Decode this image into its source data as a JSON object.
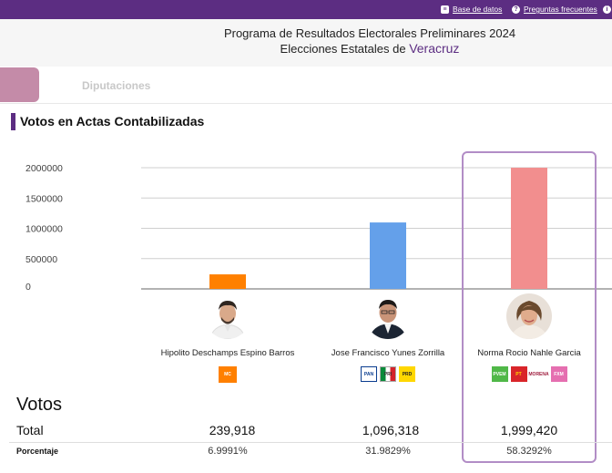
{
  "topbar": {
    "links": [
      {
        "label": "Base de datos",
        "icon": "database-icon"
      },
      {
        "label": "Preguntas frecuentes",
        "icon": "question-circle-icon"
      }
    ]
  },
  "header": {
    "line1": "Programa de Resultados Electorales Preliminares 2024",
    "line2_prefix": "Elecciones Estatales de ",
    "state": "Veracruz"
  },
  "tabs": {
    "diputaciones": "Diputaciones"
  },
  "section": {
    "title": "Votos en Actas Contabilizadas"
  },
  "chart_data": {
    "type": "bar",
    "categories": [
      "Hipolito Deschamps Espino Barros",
      "Jose Francisco Yunes Zorrilla",
      "Norma Rocio Nahle Garcia"
    ],
    "values": [
      239918,
      1096318,
      1999420
    ],
    "colors": [
      "#ff8000",
      "#64a0ea",
      "#f28e8e"
    ],
    "ylim": [
      0,
      2000000
    ],
    "yticks": [
      "2000000",
      "1500000",
      "1000000",
      "500000",
      "0"
    ],
    "grid": true
  },
  "candidates": [
    {
      "name": "Hipolito Deschamps Espino Barros",
      "total": "239,918",
      "pct": "6.9991%",
      "parties": [
        "MC"
      ]
    },
    {
      "name": "Jose Francisco Yunes Zorrilla",
      "total": "1,096,318",
      "pct": "31.9829%",
      "parties": [
        "PAN",
        "PRI",
        "PRD"
      ]
    },
    {
      "name": "Norma Rocio Nahle Garcia",
      "total": "1,999,420",
      "pct": "58.3292%",
      "parties": [
        "PVEM",
        "PT",
        "MORENA",
        "FXM"
      ]
    }
  ],
  "results": {
    "title": "Votos",
    "total_label": "Total",
    "pct_label": "Porcentaje"
  }
}
